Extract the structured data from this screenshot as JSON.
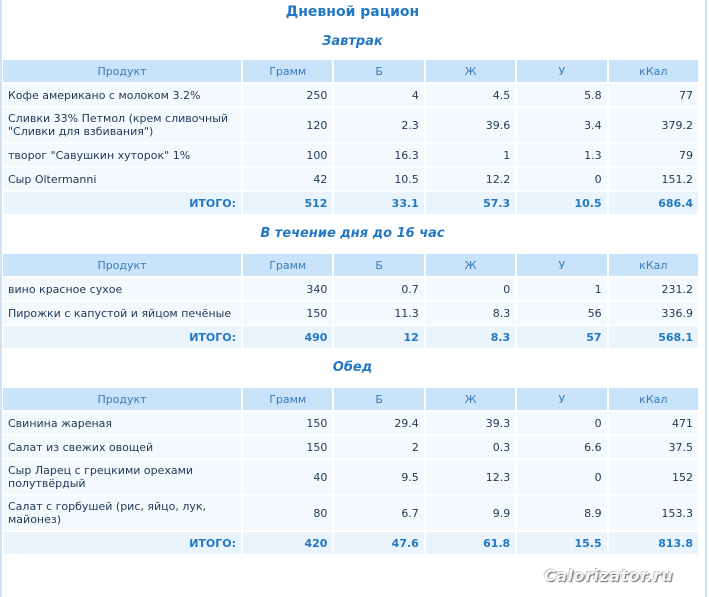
{
  "title": "Дневной рацион",
  "headers": [
    "Продукт",
    "Грамм",
    "Б",
    "Ж",
    "У",
    "кКал"
  ],
  "total_label": "ИТОГО:",
  "sections": [
    {
      "title": "Завтрак",
      "rows": [
        {
          "name": "Кофе американо с молоком 3.2%",
          "gram": "250",
          "p": "4",
          "f": "4.5",
          "c": "5.8",
          "kcal": "77"
        },
        {
          "name": "Сливки 33% Петмол (крем сливочный \"Сливки для взбивания\")",
          "gram": "120",
          "p": "2.3",
          "f": "39.6",
          "c": "3.4",
          "kcal": "379.2"
        },
        {
          "name": "творог \"Савушкин хуторок\" 1%",
          "gram": "100",
          "p": "16.3",
          "f": "1",
          "c": "1.3",
          "kcal": "79"
        },
        {
          "name": "Сыр Oltermanni",
          "gram": "42",
          "p": "10.5",
          "f": "12.2",
          "c": "0",
          "kcal": "151.2"
        }
      ],
      "total": {
        "gram": "512",
        "p": "33.1",
        "f": "57.3",
        "c": "10.5",
        "kcal": "686.4"
      }
    },
    {
      "title": "В течение дня до 16 час",
      "rows": [
        {
          "name": "вино красное сухое",
          "gram": "340",
          "p": "0.7",
          "f": "0",
          "c": "1",
          "kcal": "231.2"
        },
        {
          "name": "Пирожки с капустой и яйцом печёные",
          "gram": "150",
          "p": "11.3",
          "f": "8.3",
          "c": "56",
          "kcal": "336.9"
        }
      ],
      "total": {
        "gram": "490",
        "p": "12",
        "f": "8.3",
        "c": "57",
        "kcal": "568.1"
      }
    },
    {
      "title": "Обед",
      "rows": [
        {
          "name": "Свинина жареная",
          "gram": "150",
          "p": "29.4",
          "f": "39.3",
          "c": "0",
          "kcal": "471"
        },
        {
          "name": "Салат из свежих овощей",
          "gram": "150",
          "p": "2",
          "f": "0.3",
          "c": "6.6",
          "kcal": "37.5"
        },
        {
          "name": "Сыр Ларец с грецкими орехами полутвёрдый",
          "gram": "40",
          "p": "9.5",
          "f": "12.3",
          "c": "0",
          "kcal": "152"
        },
        {
          "name": "Салат с горбушей (рис, яйцо, лук, майонез)",
          "gram": "80",
          "p": "6.7",
          "f": "9.9",
          "c": "8.9",
          "kcal": "153.3"
        }
      ],
      "total": {
        "gram": "420",
        "p": "47.6",
        "f": "61.8",
        "c": "15.5",
        "kcal": "813.8"
      }
    }
  ],
  "watermark": "Calorizator.ru"
}
